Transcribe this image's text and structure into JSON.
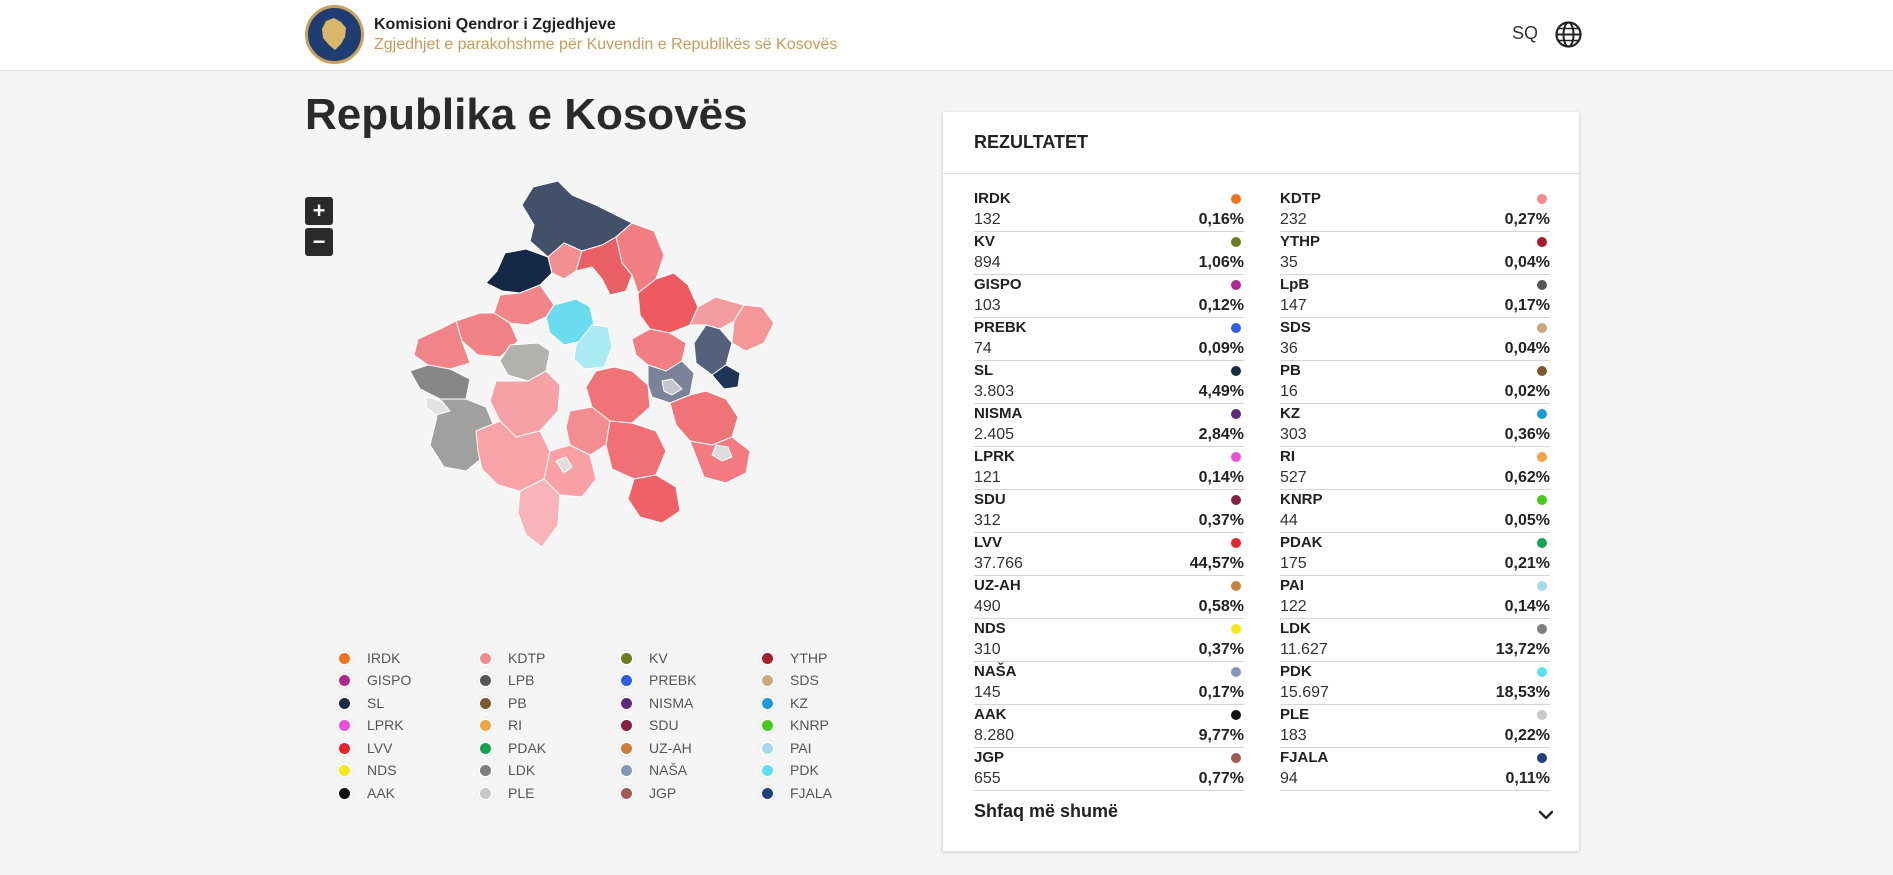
{
  "header": {
    "org_title": "Komisioni Qendror i Zgjedhjeve",
    "org_subtitle": "Zgjedhjet e parakohshme për Kuvendin e Republikës së Kosovës",
    "language": "SQ",
    "logo_icon": "kosovo-map-emblem-icon",
    "globe_icon": "globe-icon"
  },
  "page": {
    "title": "Republika e Kosovës"
  },
  "map": {
    "zoom_in": "+",
    "zoom_out": "−"
  },
  "legend": [
    {
      "label": "IRDK",
      "color": "#f0721a"
    },
    {
      "label": "KDTP",
      "color": "#f28b8b"
    },
    {
      "label": "KV",
      "color": "#6b7b1f"
    },
    {
      "label": "YTHP",
      "color": "#a51c2a"
    },
    {
      "label": "GISPO",
      "color": "#b0288f"
    },
    {
      "label": "LPB",
      "color": "#555555"
    },
    {
      "label": "PREBK",
      "color": "#2f5ee6"
    },
    {
      "label": "SDS",
      "color": "#c9a97a"
    },
    {
      "label": "SL",
      "color": "#1c2b45"
    },
    {
      "label": "PB",
      "color": "#7a5a2e"
    },
    {
      "label": "NISMA",
      "color": "#5c2a7a"
    },
    {
      "label": "KZ",
      "color": "#1a9ad6"
    },
    {
      "label": "LPRK",
      "color": "#ee4fd8"
    },
    {
      "label": "RI",
      "color": "#f3a446"
    },
    {
      "label": "SDU",
      "color": "#86203f"
    },
    {
      "label": "KNRP",
      "color": "#47c91c"
    },
    {
      "label": "LVV",
      "color": "#e8232a"
    },
    {
      "label": "PDAK",
      "color": "#16a352"
    },
    {
      "label": "UZ-AH",
      "color": "#cc7f3a"
    },
    {
      "label": "PAI",
      "color": "#a6d9ef"
    },
    {
      "label": "NDS",
      "color": "#f5e81a"
    },
    {
      "label": "LDK",
      "color": "#7d7d7d"
    },
    {
      "label": "NAŠA",
      "color": "#8495b8"
    },
    {
      "label": "PDK",
      "color": "#5be0f0"
    },
    {
      "label": "AAK",
      "color": "#111111"
    },
    {
      "label": "PLE",
      "color": "#c8c8c8"
    },
    {
      "label": "JGP",
      "color": "#a35a55"
    },
    {
      "label": "FJALA",
      "color": "#1f3f7d"
    }
  ],
  "results": {
    "title": "REZULTATET",
    "more_label": "Shfaq më shumë",
    "items": [
      {
        "name": "IRDK",
        "votes": "132",
        "pct": "0,16%",
        "color": "#f0721a"
      },
      {
        "name": "KDTP",
        "votes": "232",
        "pct": "0,27%",
        "color": "#f28b8b"
      },
      {
        "name": "KV",
        "votes": "894",
        "pct": "1,06%",
        "color": "#6b7b1f"
      },
      {
        "name": "YTHP",
        "votes": "35",
        "pct": "0,04%",
        "color": "#a51c2a"
      },
      {
        "name": "GISPO",
        "votes": "103",
        "pct": "0,12%",
        "color": "#b0288f"
      },
      {
        "name": "LpB",
        "votes": "147",
        "pct": "0,17%",
        "color": "#555555"
      },
      {
        "name": "PREBK",
        "votes": "74",
        "pct": "0,09%",
        "color": "#2f5ee6"
      },
      {
        "name": "SDS",
        "votes": "36",
        "pct": "0,04%",
        "color": "#c9a97a"
      },
      {
        "name": "SL",
        "votes": "3.803",
        "pct": "4,49%",
        "color": "#1c2b45"
      },
      {
        "name": "PB",
        "votes": "16",
        "pct": "0,02%",
        "color": "#7a5a2e"
      },
      {
        "name": "NISMA",
        "votes": "2.405",
        "pct": "2,84%",
        "color": "#5c2a7a"
      },
      {
        "name": "KZ",
        "votes": "303",
        "pct": "0,36%",
        "color": "#1a9ad6"
      },
      {
        "name": "LPRK",
        "votes": "121",
        "pct": "0,14%",
        "color": "#ee4fd8"
      },
      {
        "name": "RI",
        "votes": "527",
        "pct": "0,62%",
        "color": "#f3a446"
      },
      {
        "name": "SDU",
        "votes": "312",
        "pct": "0,37%",
        "color": "#86203f"
      },
      {
        "name": "KNRP",
        "votes": "44",
        "pct": "0,05%",
        "color": "#47c91c"
      },
      {
        "name": "LVV",
        "votes": "37.766",
        "pct": "44,57%",
        "color": "#e8232a"
      },
      {
        "name": "PDAK",
        "votes": "175",
        "pct": "0,21%",
        "color": "#16a352"
      },
      {
        "name": "UZ-AH",
        "votes": "490",
        "pct": "0,58%",
        "color": "#cc7f3a"
      },
      {
        "name": "PAI",
        "votes": "122",
        "pct": "0,14%",
        "color": "#a6d9ef"
      },
      {
        "name": "NDS",
        "votes": "310",
        "pct": "0,37%",
        "color": "#f5e81a"
      },
      {
        "name": "LDK",
        "votes": "11.627",
        "pct": "13,72%",
        "color": "#7d7d7d"
      },
      {
        "name": "NAŠA",
        "votes": "145",
        "pct": "0,17%",
        "color": "#8495b8"
      },
      {
        "name": "PDK",
        "votes": "15.697",
        "pct": "18,53%",
        "color": "#5be0f0"
      },
      {
        "name": "AAK",
        "votes": "8.280",
        "pct": "9,77%",
        "color": "#111111"
      },
      {
        "name": "PLE",
        "votes": "183",
        "pct": "0,22%",
        "color": "#c8c8c8"
      },
      {
        "name": "JGP",
        "votes": "655",
        "pct": "0,77%",
        "color": "#a35a55"
      },
      {
        "name": "FJALA",
        "votes": "94",
        "pct": "0,11%",
        "color": "#1f3f7d"
      }
    ]
  }
}
